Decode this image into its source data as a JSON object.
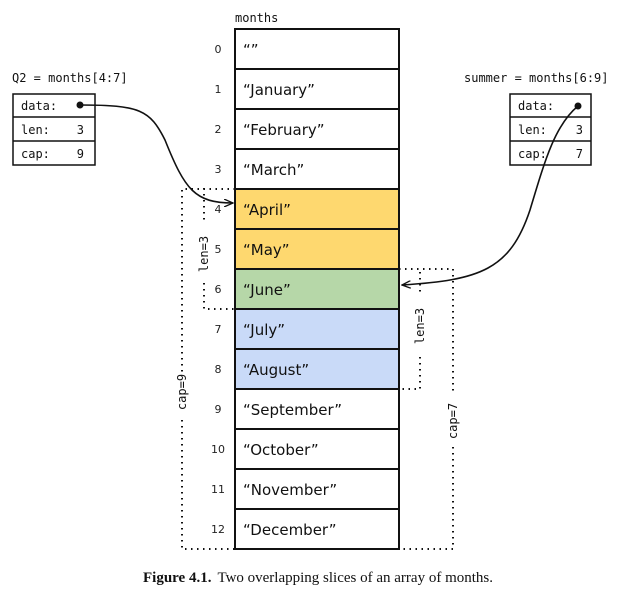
{
  "array": {
    "name": "months",
    "cells": [
      "“”",
      "“January”",
      "“February”",
      "“March”",
      "“April”",
      "“May”",
      "“June”",
      "“July”",
      "“August”",
      "“September”",
      "“October”",
      "“November”",
      "“December”"
    ],
    "indices": [
      "0",
      "1",
      "2",
      "3",
      "4",
      "5",
      "6",
      "7",
      "8",
      "9",
      "10",
      "11",
      "12"
    ],
    "cell_colors": [
      "#ffffff",
      "#ffffff",
      "#ffffff",
      "#ffffff",
      "#fed86f",
      "#fed86f",
      "#b6d7a8",
      "#c9daf8",
      "#c9daf8",
      "#ffffff",
      "#ffffff",
      "#ffffff",
      "#ffffff"
    ]
  },
  "slices": {
    "q2": {
      "title": "Q2 = months[4:7]",
      "data_label": "data:",
      "len_label": "len:",
      "len_value": "3",
      "cap_label": "cap:",
      "cap_value": "9",
      "len_annotation": "len=3",
      "cap_annotation": "cap=9"
    },
    "summer": {
      "title": "summer = months[6:9]",
      "data_label": "data:",
      "len_label": "len:",
      "len_value": "3",
      "cap_label": "cap:",
      "cap_value": "7",
      "len_annotation": "len=3",
      "cap_annotation": "cap=7"
    }
  },
  "caption": {
    "label": "Figure 4.1.",
    "text": "Two overlapping slices of an array of months."
  }
}
